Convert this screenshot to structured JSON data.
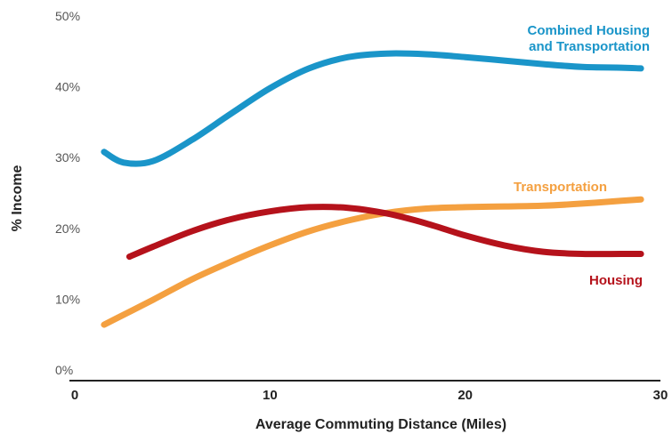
{
  "chart_data": {
    "type": "line",
    "title": "",
    "xlabel": "Average Commuting Distance (Miles)",
    "ylabel": "% Income",
    "xlim": [
      0,
      30
    ],
    "ylim": [
      0,
      50
    ],
    "x_ticks": [
      "0",
      "10",
      "20",
      "30"
    ],
    "y_ticks": [
      "0%",
      "10%",
      "20%",
      "30%",
      "40%",
      "50%"
    ],
    "grid": false,
    "legend": "none",
    "series": [
      {
        "name": "Combined Housing and Transportation",
        "label_lines": [
          "Combined Housing",
          "and Transportation"
        ],
        "color": "#1a95c9",
        "x": [
          1.5,
          2.5,
          4,
          6,
          8,
          10,
          12,
          14,
          16,
          18,
          20,
          22,
          24,
          26,
          28,
          29
        ],
        "y": [
          30.8,
          29.3,
          29.5,
          32.5,
          36.2,
          39.8,
          42.6,
          44.2,
          44.7,
          44.6,
          44.2,
          43.7,
          43.2,
          42.8,
          42.7,
          42.6
        ]
      },
      {
        "name": "Transportation",
        "label_lines": [
          "Transportation"
        ],
        "color": "#f4a040",
        "x": [
          1.5,
          4,
          6,
          8,
          10,
          12,
          14,
          16,
          18,
          20,
          22,
          24,
          26,
          28,
          29
        ],
        "y": [
          6.4,
          9.9,
          12.8,
          15.3,
          17.6,
          19.6,
          21.1,
          22.2,
          22.8,
          23.0,
          23.1,
          23.2,
          23.5,
          23.9,
          24.1
        ]
      },
      {
        "name": "Housing",
        "label_lines": [
          "Housing"
        ],
        "color": "#b5121b",
        "x": [
          2.8,
          4,
          6,
          8,
          10,
          12,
          14,
          16,
          18,
          20,
          22,
          24,
          26,
          28,
          29
        ],
        "y": [
          16.0,
          17.4,
          19.6,
          21.3,
          22.4,
          23.0,
          22.9,
          22.1,
          20.7,
          19.0,
          17.6,
          16.7,
          16.4,
          16.4,
          16.4
        ]
      }
    ]
  }
}
